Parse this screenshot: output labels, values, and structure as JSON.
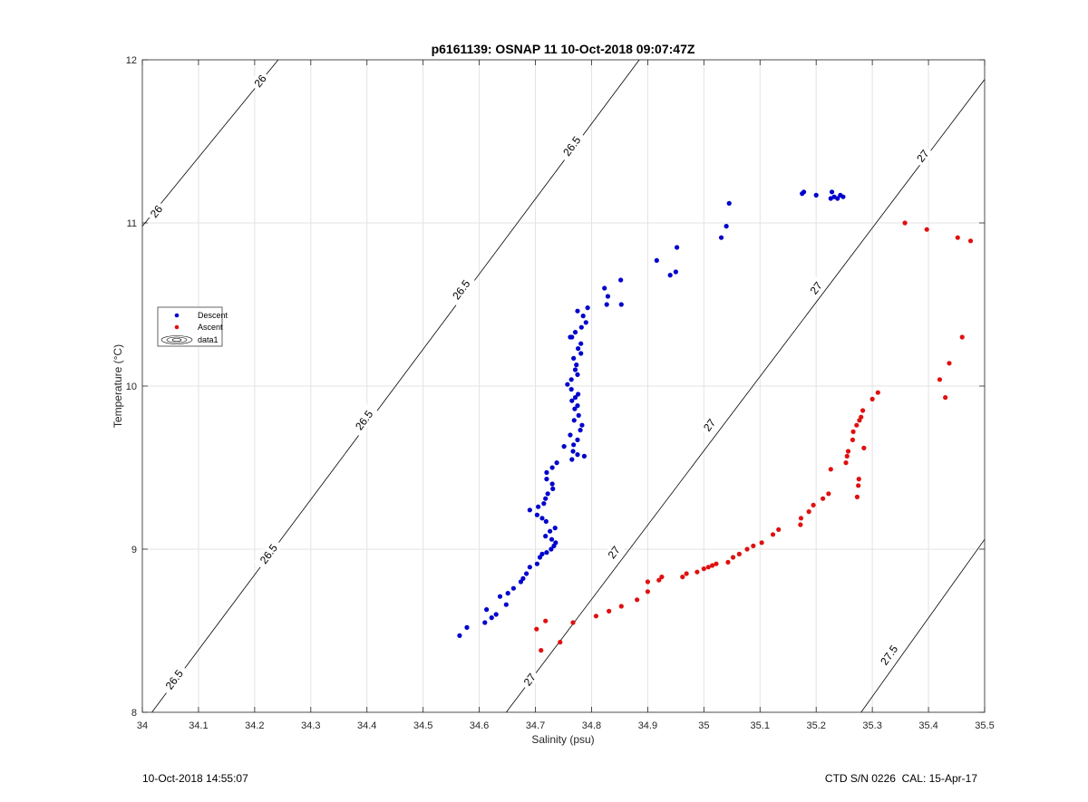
{
  "chart_data": {
    "type": "scatter",
    "title": "p6161139: OSNAP 11 10-Oct-2018 09:07:47Z",
    "xlabel": "Salinity (psu)",
    "ylabel": "Temperature (°C)",
    "xlim": [
      34,
      35.5
    ],
    "ylim": [
      8,
      12
    ],
    "xticks": [
      "34",
      "34.1",
      "34.2",
      "34.3",
      "34.4",
      "34.5",
      "34.6",
      "34.7",
      "34.8",
      "34.9",
      "35",
      "35.1",
      "35.2",
      "35.3",
      "35.4",
      "35.5"
    ],
    "yticks": [
      "8",
      "9",
      "10",
      "11",
      "12"
    ],
    "grid": true,
    "legend_position": "left",
    "legend": [
      "Descent",
      "Ascent",
      "data1"
    ],
    "contours": [
      {
        "label": "26",
        "points": [
          [
            34.0,
            10.98
          ],
          [
            34.242,
            12.0
          ]
        ]
      },
      {
        "label": "26.5",
        "points": [
          [
            34.017,
            8.0
          ],
          [
            34.885,
            12.0
          ]
        ]
      },
      {
        "label": "27",
        "points": [
          [
            34.648,
            8.0
          ],
          [
            35.5,
            11.88
          ]
        ]
      },
      {
        "label": "27.5",
        "points": [
          [
            35.28,
            8.0
          ],
          [
            35.5,
            9.06
          ]
        ]
      }
    ],
    "contour_labels": [
      {
        "label": "26",
        "s": 34.21,
        "t": 11.87
      },
      {
        "label": "26",
        "s": 34.025,
        "t": 11.07
      },
      {
        "label": "26.5",
        "s": 34.765,
        "t": 11.47
      },
      {
        "label": "26.5",
        "s": 34.568,
        "t": 10.59
      },
      {
        "label": "26.5",
        "s": 34.395,
        "t": 9.79
      },
      {
        "label": "26.5",
        "s": 34.225,
        "t": 8.97
      },
      {
        "label": "26.5",
        "s": 34.057,
        "t": 8.2
      },
      {
        "label": "27",
        "s": 35.39,
        "t": 11.41
      },
      {
        "label": "27",
        "s": 35.2,
        "t": 10.6
      },
      {
        "label": "27",
        "s": 35.01,
        "t": 9.76
      },
      {
        "label": "27",
        "s": 34.84,
        "t": 8.98
      },
      {
        "label": "27",
        "s": 34.69,
        "t": 8.2
      },
      {
        "label": "27.5",
        "s": 35.33,
        "t": 8.35
      }
    ],
    "series": [
      {
        "name": "Descent",
        "color": "#0000cd",
        "points": [
          [
            34.565,
            8.47
          ],
          [
            34.578,
            8.52
          ],
          [
            34.61,
            8.55
          ],
          [
            34.613,
            8.63
          ],
          [
            34.622,
            8.58
          ],
          [
            34.63,
            8.6
          ],
          [
            34.637,
            8.71
          ],
          [
            34.648,
            8.66
          ],
          [
            34.651,
            8.73
          ],
          [
            34.661,
            8.76
          ],
          [
            34.674,
            8.8
          ],
          [
            34.678,
            8.82
          ],
          [
            34.684,
            8.85
          ],
          [
            34.69,
            8.89
          ],
          [
            34.703,
            8.91
          ],
          [
            34.708,
            8.95
          ],
          [
            34.712,
            8.97
          ],
          [
            34.72,
            8.98
          ],
          [
            34.728,
            9.0
          ],
          [
            34.733,
            9.02
          ],
          [
            34.736,
            9.04
          ],
          [
            34.729,
            9.06
          ],
          [
            34.718,
            9.08
          ],
          [
            34.726,
            9.11
          ],
          [
            34.735,
            9.13
          ],
          [
            34.719,
            9.17
          ],
          [
            34.712,
            9.19
          ],
          [
            34.703,
            9.21
          ],
          [
            34.69,
            9.24
          ],
          [
            34.705,
            9.26
          ],
          [
            34.715,
            9.28
          ],
          [
            34.718,
            9.31
          ],
          [
            34.722,
            9.34
          ],
          [
            34.731,
            9.37
          ],
          [
            34.73,
            9.4
          ],
          [
            34.72,
            9.43
          ],
          [
            34.72,
            9.47
          ],
          [
            34.73,
            9.5
          ],
          [
            34.738,
            9.53
          ],
          [
            34.751,
            9.63
          ],
          [
            34.765,
            9.55
          ],
          [
            34.775,
            9.58
          ],
          [
            34.787,
            9.57
          ],
          [
            34.767,
            9.6
          ],
          [
            34.768,
            9.64
          ],
          [
            34.775,
            9.67
          ],
          [
            34.762,
            9.7
          ],
          [
            34.78,
            9.73
          ],
          [
            34.783,
            9.76
          ],
          [
            34.769,
            9.79
          ],
          [
            34.777,
            9.82
          ],
          [
            34.77,
            9.86
          ],
          [
            34.775,
            9.88
          ],
          [
            34.765,
            9.91
          ],
          [
            34.771,
            9.93
          ],
          [
            34.776,
            9.95
          ],
          [
            34.764,
            9.98
          ],
          [
            34.757,
            10.01
          ],
          [
            34.764,
            10.04
          ],
          [
            34.775,
            10.07
          ],
          [
            34.771,
            10.1
          ],
          [
            34.773,
            10.13
          ],
          [
            34.768,
            10.17
          ],
          [
            34.781,
            10.2
          ],
          [
            34.776,
            10.23
          ],
          [
            34.781,
            10.26
          ],
          [
            34.762,
            10.3
          ],
          [
            34.765,
            10.3
          ],
          [
            34.771,
            10.33
          ],
          [
            34.782,
            10.36
          ],
          [
            34.79,
            10.39
          ],
          [
            34.785,
            10.43
          ],
          [
            34.775,
            10.46
          ],
          [
            34.793,
            10.48
          ],
          [
            34.827,
            10.5
          ],
          [
            34.853,
            10.5
          ],
          [
            34.829,
            10.55
          ],
          [
            34.823,
            10.6
          ],
          [
            34.852,
            10.65
          ],
          [
            34.94,
            10.68
          ],
          [
            34.95,
            10.7
          ],
          [
            34.916,
            10.77
          ],
          [
            34.952,
            10.85
          ],
          [
            35.031,
            10.91
          ],
          [
            35.04,
            10.98
          ],
          [
            35.045,
            11.12
          ],
          [
            35.175,
            11.18
          ],
          [
            35.178,
            11.19
          ],
          [
            35.2,
            11.17
          ],
          [
            35.228,
            11.19
          ],
          [
            35.226,
            11.15
          ],
          [
            35.232,
            11.16
          ],
          [
            35.238,
            11.15
          ],
          [
            35.243,
            11.17
          ],
          [
            35.248,
            11.16
          ]
        ]
      },
      {
        "name": "Ascent",
        "color": "#e01010",
        "points": [
          [
            34.702,
            8.51
          ],
          [
            34.71,
            8.38
          ],
          [
            34.718,
            8.56
          ],
          [
            34.744,
            8.43
          ],
          [
            34.767,
            8.55
          ],
          [
            34.808,
            8.59
          ],
          [
            34.831,
            8.62
          ],
          [
            34.853,
            8.65
          ],
          [
            34.881,
            8.69
          ],
          [
            34.9,
            8.74
          ],
          [
            34.9,
            8.8
          ],
          [
            34.92,
            8.81
          ],
          [
            34.925,
            8.83
          ],
          [
            34.962,
            8.83
          ],
          [
            34.969,
            8.85
          ],
          [
            34.988,
            8.86
          ],
          [
            35.0,
            8.88
          ],
          [
            35.008,
            8.89
          ],
          [
            35.015,
            8.9
          ],
          [
            35.022,
            8.91
          ],
          [
            35.043,
            8.92
          ],
          [
            35.052,
            8.95
          ],
          [
            35.063,
            8.97
          ],
          [
            35.077,
            9.0
          ],
          [
            35.088,
            9.02
          ],
          [
            35.103,
            9.04
          ],
          [
            35.123,
            9.09
          ],
          [
            35.133,
            9.12
          ],
          [
            35.172,
            9.15
          ],
          [
            35.173,
            9.19
          ],
          [
            35.187,
            9.23
          ],
          [
            35.195,
            9.27
          ],
          [
            35.212,
            9.31
          ],
          [
            35.222,
            9.34
          ],
          [
            35.226,
            9.49
          ],
          [
            35.253,
            9.53
          ],
          [
            35.255,
            9.57
          ],
          [
            35.257,
            9.6
          ],
          [
            35.265,
            9.67
          ],
          [
            35.266,
            9.72
          ],
          [
            35.272,
            9.76
          ],
          [
            35.277,
            9.79
          ],
          [
            35.28,
            9.81
          ],
          [
            35.283,
            9.85
          ],
          [
            35.285,
            9.62
          ],
          [
            35.273,
            9.32
          ],
          [
            35.275,
            9.39
          ],
          [
            35.276,
            9.43
          ],
          [
            35.3,
            9.92
          ],
          [
            35.31,
            9.96
          ],
          [
            35.42,
            10.04
          ],
          [
            35.43,
            9.93
          ],
          [
            35.437,
            10.14
          ],
          [
            35.46,
            10.3
          ],
          [
            35.358,
            11.0
          ],
          [
            35.397,
            10.96
          ],
          [
            35.452,
            10.91
          ],
          [
            35.475,
            10.89
          ]
        ]
      }
    ]
  },
  "footer": {
    "left": "10-Oct-2018 14:55:07",
    "right": "CTD S/N 0226  CAL: 15-Apr-17"
  }
}
